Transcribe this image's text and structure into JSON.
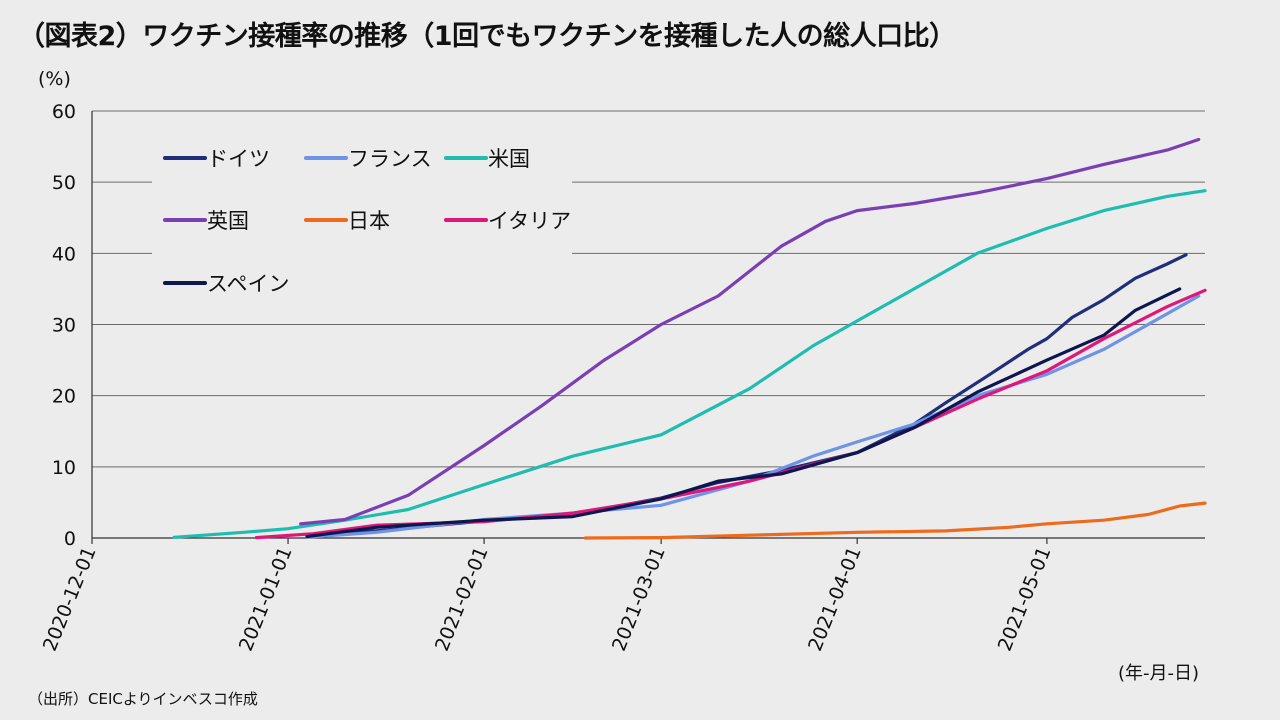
{
  "chart_data": {
    "type": "line",
    "title": "（図表2）ワクチン接種率の推移（1回でもワクチンを接種した人の総人口比）",
    "ylabel": "(%)",
    "xlabel": "(年-月-日)",
    "source": "（出所）CEICよりインベスコ作成",
    "ylim": [
      0,
      60
    ],
    "yticks": [
      0,
      10,
      20,
      30,
      40,
      50,
      60
    ],
    "xlim": [
      "2020-12-01",
      "2021-05-26"
    ],
    "xticks": [
      "2020-12-01",
      "2021-01-01",
      "2021-02-01",
      "2021-03-01",
      "2021-04-01",
      "2021-05-01"
    ],
    "grid": "horizontal",
    "legend_position": "top-left",
    "series": [
      {
        "name": "ドイツ",
        "color": "#1f2f7a",
        "points": [
          [
            "2021-01-04",
            0.3
          ],
          [
            "2021-01-15",
            1.0
          ],
          [
            "2021-02-01",
            2.4
          ],
          [
            "2021-02-15",
            3.3
          ],
          [
            "2021-03-01",
            5.6
          ],
          [
            "2021-03-10",
            7.8
          ],
          [
            "2021-03-20",
            9.5
          ],
          [
            "2021-04-01",
            12.0
          ],
          [
            "2021-04-10",
            16.0
          ],
          [
            "2021-04-15",
            19.0
          ],
          [
            "2021-04-22",
            23.0
          ],
          [
            "2021-04-28",
            26.5
          ],
          [
            "2021-05-01",
            28.0
          ],
          [
            "2021-05-05",
            31.0
          ],
          [
            "2021-05-10",
            33.5
          ],
          [
            "2021-05-15",
            36.5
          ],
          [
            "2021-05-20",
            38.5
          ],
          [
            "2021-05-23",
            39.8
          ]
        ]
      },
      {
        "name": "フランス",
        "color": "#6f93e6",
        "points": [
          [
            "2021-01-04",
            0.1
          ],
          [
            "2021-01-15",
            0.8
          ],
          [
            "2021-02-01",
            2.6
          ],
          [
            "2021-02-15",
            3.5
          ],
          [
            "2021-03-01",
            4.6
          ],
          [
            "2021-03-15",
            8.0
          ],
          [
            "2021-03-25",
            11.5
          ],
          [
            "2021-04-01",
            13.5
          ],
          [
            "2021-04-10",
            16.0
          ],
          [
            "2021-04-20",
            20.0
          ],
          [
            "2021-05-01",
            23.0
          ],
          [
            "2021-05-10",
            26.5
          ],
          [
            "2021-05-20",
            31.5
          ],
          [
            "2021-05-25",
            34.0
          ]
        ]
      },
      {
        "name": "米国",
        "color": "#1fbcb0",
        "points": [
          [
            "2020-12-14",
            0.1
          ],
          [
            "2020-12-25",
            0.8
          ],
          [
            "2021-01-01",
            1.3
          ],
          [
            "2021-01-10",
            2.5
          ],
          [
            "2021-01-20",
            4.0
          ],
          [
            "2021-02-01",
            7.5
          ],
          [
            "2021-02-15",
            11.5
          ],
          [
            "2021-03-01",
            14.5
          ],
          [
            "2021-03-15",
            21.0
          ],
          [
            "2021-03-25",
            27.0
          ],
          [
            "2021-04-01",
            30.5
          ],
          [
            "2021-04-10",
            35.0
          ],
          [
            "2021-04-20",
            40.0
          ],
          [
            "2021-05-01",
            43.5
          ],
          [
            "2021-05-10",
            46.0
          ],
          [
            "2021-05-20",
            48.0
          ],
          [
            "2021-05-26",
            48.8
          ]
        ]
      },
      {
        "name": "英国",
        "color": "#7a3fb5",
        "points": [
          [
            "2021-01-03",
            2.0
          ],
          [
            "2021-01-10",
            2.6
          ],
          [
            "2021-01-20",
            6.0
          ],
          [
            "2021-02-01",
            13.0
          ],
          [
            "2021-02-10",
            18.5
          ],
          [
            "2021-02-20",
            25.0
          ],
          [
            "2021-03-01",
            30.0
          ],
          [
            "2021-03-10",
            34.0
          ],
          [
            "2021-03-20",
            41.0
          ],
          [
            "2021-03-27",
            44.5
          ],
          [
            "2021-04-01",
            46.0
          ],
          [
            "2021-04-10",
            47.0
          ],
          [
            "2021-04-20",
            48.5
          ],
          [
            "2021-05-01",
            50.5
          ],
          [
            "2021-05-10",
            52.5
          ],
          [
            "2021-05-20",
            54.5
          ],
          [
            "2021-05-25",
            56.0
          ]
        ]
      },
      {
        "name": "日本",
        "color": "#ee6a1c",
        "points": [
          [
            "2021-02-17",
            0.0
          ],
          [
            "2021-03-01",
            0.05
          ],
          [
            "2021-03-15",
            0.4
          ],
          [
            "2021-04-01",
            0.8
          ],
          [
            "2021-04-15",
            1.0
          ],
          [
            "2021-04-25",
            1.5
          ],
          [
            "2021-05-01",
            2.0
          ],
          [
            "2021-05-10",
            2.5
          ],
          [
            "2021-05-17",
            3.3
          ],
          [
            "2021-05-22",
            4.5
          ],
          [
            "2021-05-26",
            4.9
          ]
        ]
      },
      {
        "name": "イタリア",
        "color": "#e0167a",
        "points": [
          [
            "2020-12-27",
            0.05
          ],
          [
            "2021-01-05",
            0.6
          ],
          [
            "2021-01-15",
            1.8
          ],
          [
            "2021-02-01",
            2.3
          ],
          [
            "2021-02-15",
            3.5
          ],
          [
            "2021-03-01",
            5.5
          ],
          [
            "2021-03-15",
            8.0
          ],
          [
            "2021-04-01",
            12.0
          ],
          [
            "2021-04-10",
            15.5
          ],
          [
            "2021-04-20",
            19.5
          ],
          [
            "2021-05-01",
            23.5
          ],
          [
            "2021-05-10",
            28.0
          ],
          [
            "2021-05-20",
            32.5
          ],
          [
            "2021-05-26",
            34.8
          ]
        ]
      },
      {
        "name": "スペイン",
        "color": "#0e1650",
        "points": [
          [
            "2021-01-04",
            0.2
          ],
          [
            "2021-01-15",
            1.5
          ],
          [
            "2021-02-01",
            2.5
          ],
          [
            "2021-02-15",
            3.0
          ],
          [
            "2021-03-01",
            5.5
          ],
          [
            "2021-03-10",
            8.0
          ],
          [
            "2021-03-20",
            9.0
          ],
          [
            "2021-04-01",
            12.0
          ],
          [
            "2021-04-10",
            15.5
          ],
          [
            "2021-04-20",
            20.5
          ],
          [
            "2021-05-01",
            25.0
          ],
          [
            "2021-05-10",
            28.5
          ],
          [
            "2021-05-15",
            32.0
          ],
          [
            "2021-05-22",
            35.0
          ]
        ]
      }
    ]
  }
}
